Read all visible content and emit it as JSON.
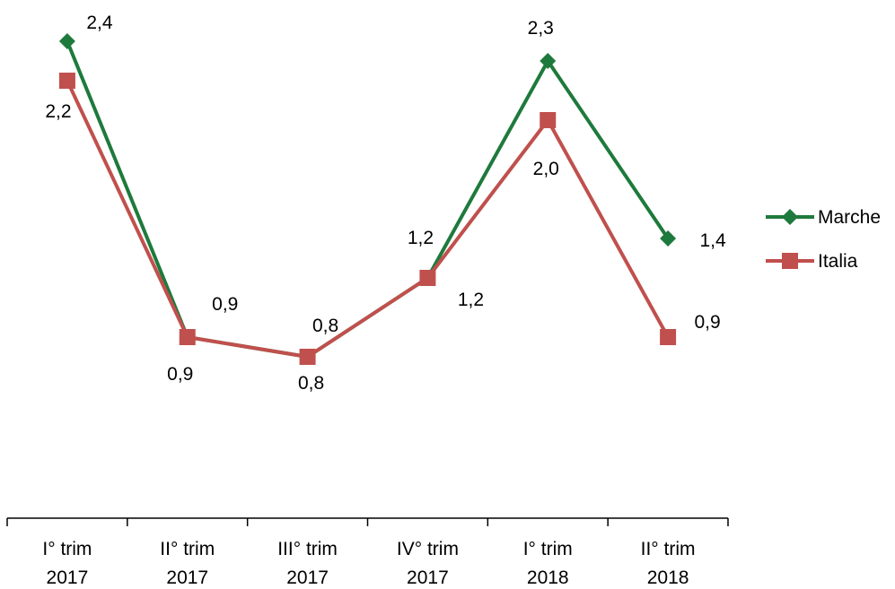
{
  "chart_data": {
    "type": "line",
    "categories": [
      [
        "I° trim",
        "2017"
      ],
      [
        "II° trim",
        "2017"
      ],
      [
        "III° trim",
        "2017"
      ],
      [
        "IV° trim",
        "2017"
      ],
      [
        "I° trim",
        "2018"
      ],
      [
        "II° trim",
        "2018"
      ]
    ],
    "series": [
      {
        "name": "Marche",
        "values": [
          2.4,
          0.9,
          0.8,
          1.2,
          2.3,
          1.4
        ],
        "labels": [
          "2,4",
          "0,9",
          "0,8",
          "1,2",
          "2,3",
          "1,4"
        ],
        "color": "#1e7a3c",
        "marker": "diamond"
      },
      {
        "name": "Italia",
        "values": [
          2.2,
          0.9,
          0.8,
          1.2,
          2.0,
          0.9
        ],
        "labels": [
          "2,2",
          "0,9",
          "0,8",
          "1,2",
          "2,0",
          "0,9"
        ],
        "color": "#c0504d",
        "marker": "square"
      }
    ],
    "ylim": [
      -0.9,
      2.6
    ],
    "y_axis_visible": false,
    "grid": false,
    "legend_position": "right"
  }
}
